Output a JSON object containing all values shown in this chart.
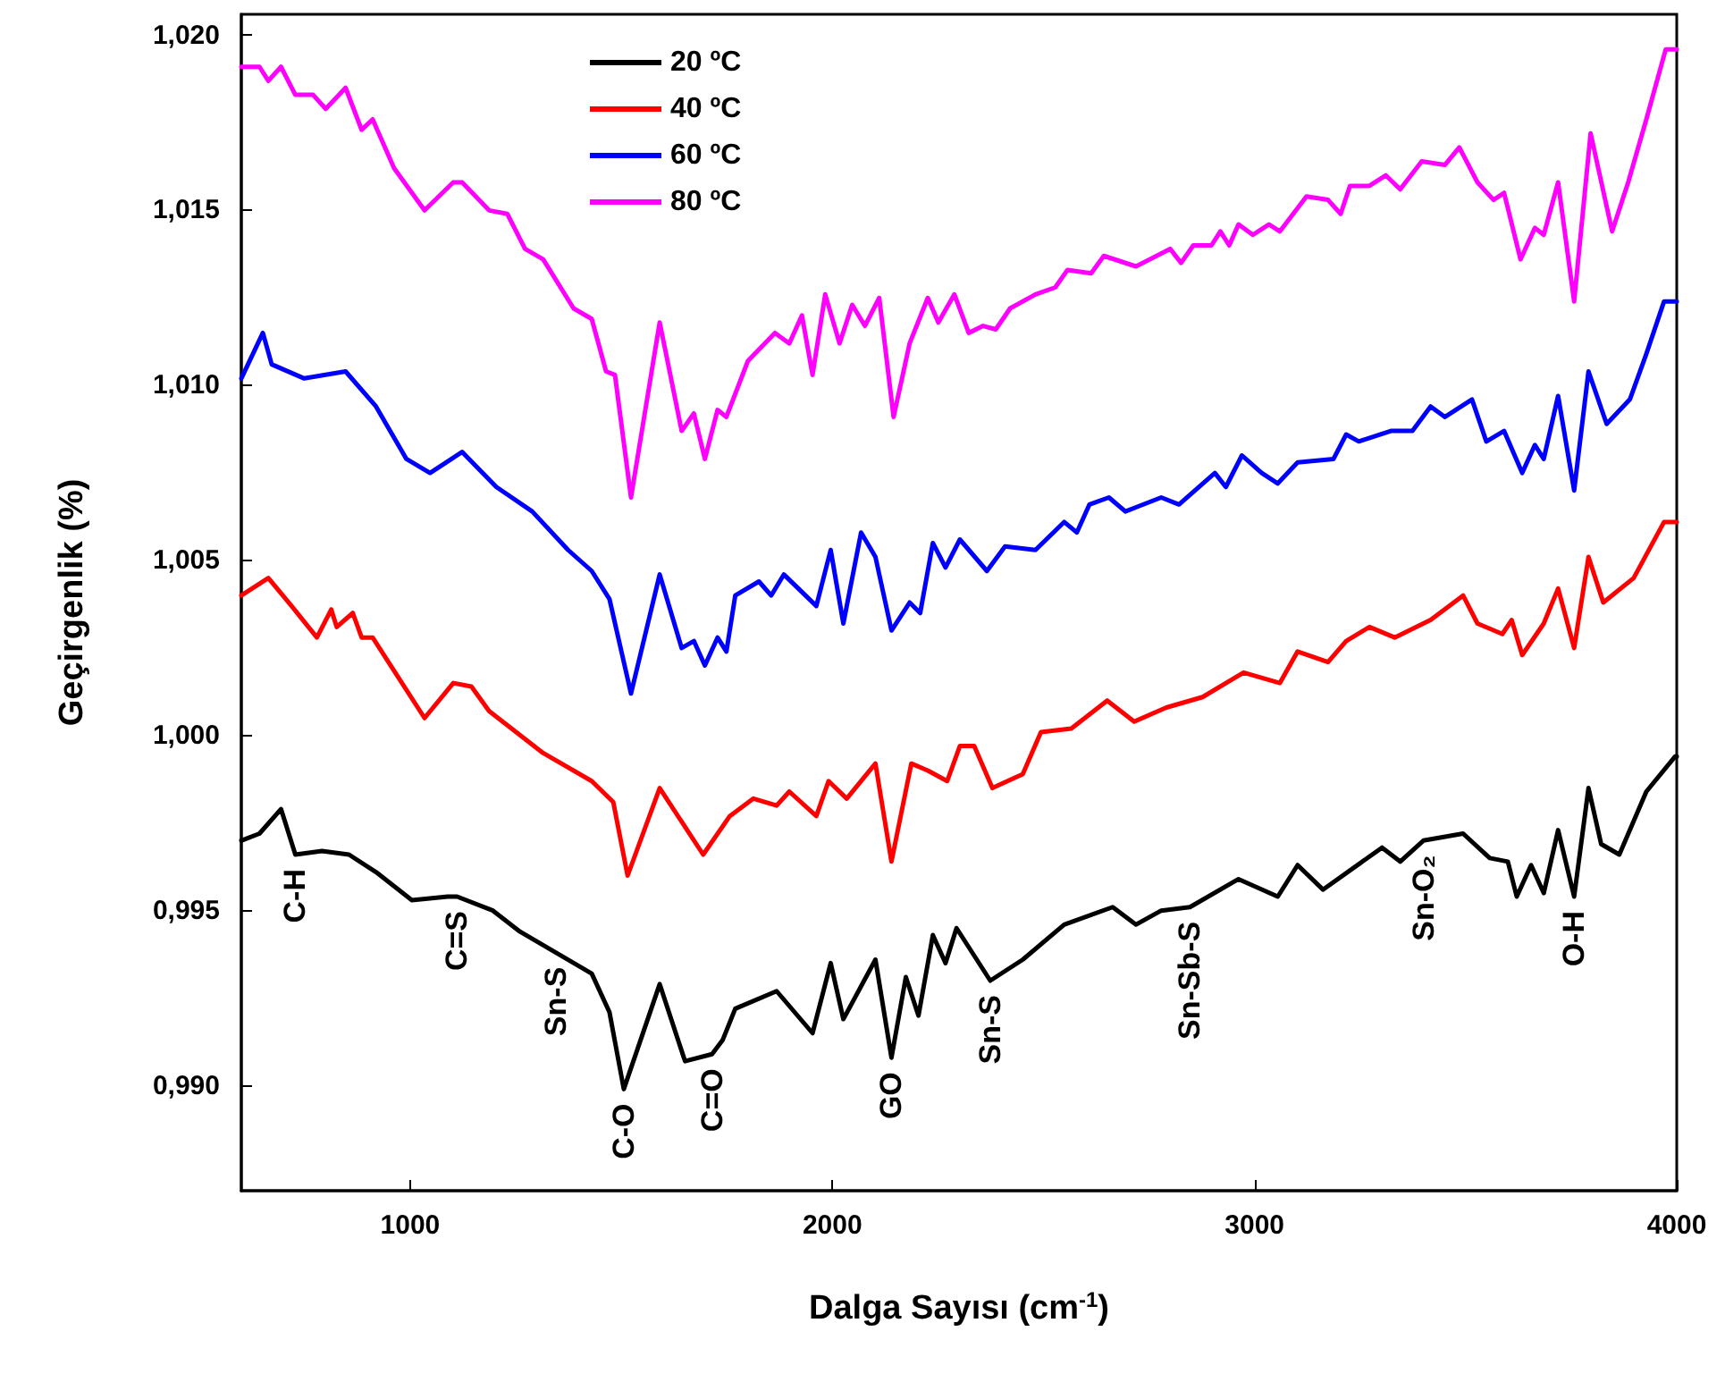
{
  "chart_data": {
    "type": "line",
    "xlabel": "Dalga Sayısı (cm$^{-1}$)",
    "ylabel": "Geçirgenlik (%)",
    "xlim": [
      600,
      4000
    ],
    "xticks": [
      1000,
      2000,
      3000,
      4000
    ],
    "ylim": [
      0.987,
      1.0206
    ],
    "yticks": [
      {
        "value": 0.99,
        "label": "0,990"
      },
      {
        "value": 0.995,
        "label": "0,995"
      },
      {
        "value": 1.0,
        "label": "1,000"
      },
      {
        "value": 1.005,
        "label": "1,005"
      },
      {
        "value": 1.01,
        "label": "1,010"
      },
      {
        "value": 1.015,
        "label": "1,015"
      },
      {
        "value": 1.02,
        "label": "1,020"
      }
    ],
    "grid": false,
    "legend": "top left",
    "marker": "none",
    "line_style": "solid",
    "series": [
      {
        "name": "20 ºC",
        "color": "#000000",
        "x": [
          600,
          643,
          694,
          728,
          791,
          855,
          919,
          1004,
          1089,
          1111,
          1196,
          1260,
          1345,
          1430,
          1472,
          1506,
          1591,
          1651,
          1715,
          1740,
          1770,
          1868,
          1953,
          1996,
          2026,
          2102,
          2140,
          2174,
          2204,
          2238,
          2268,
          2294,
          2374,
          2451,
          2549,
          2664,
          2719,
          2779,
          2847,
          2962,
          3055,
          3102,
          3162,
          3302,
          3345,
          3400,
          3494,
          3557,
          3600,
          3621,
          3655,
          3685,
          3719,
          3757,
          3791,
          3821,
          3864,
          3928,
          3996,
          4000
        ],
        "values": [
          0.997,
          0.9972,
          0.9979,
          0.9966,
          0.9967,
          0.9966,
          0.9961,
          0.9953,
          0.9954,
          0.9954,
          0.995,
          0.9944,
          0.9938,
          0.9932,
          0.9921,
          0.9899,
          0.9929,
          0.9907,
          0.9909,
          0.9913,
          0.9922,
          0.9927,
          0.9915,
          0.9935,
          0.9919,
          0.9936,
          0.9908,
          0.9931,
          0.992,
          0.9943,
          0.9935,
          0.9945,
          0.993,
          0.9936,
          0.9946,
          0.9951,
          0.9946,
          0.995,
          0.9951,
          0.9959,
          0.9954,
          0.9963,
          0.9956,
          0.9968,
          0.9964,
          0.997,
          0.9972,
          0.9965,
          0.9964,
          0.9954,
          0.9963,
          0.9955,
          0.9973,
          0.9954,
          0.9985,
          0.9969,
          0.9966,
          0.9984,
          0.9994,
          0.9994
        ]
      },
      {
        "name": "40 ºC",
        "color": "#ff0000",
        "x": [
          600,
          664,
          719,
          779,
          813,
          826,
          864,
          885,
          911,
          1034,
          1102,
          1145,
          1187,
          1315,
          1430,
          1481,
          1515,
          1591,
          1694,
          1757,
          1813,
          1868,
          1898,
          1962,
          1991,
          2034,
          2102,
          2140,
          2187,
          2226,
          2272,
          2302,
          2336,
          2379,
          2451,
          2494,
          2566,
          2651,
          2715,
          2791,
          2877,
          2974,
          3060,
          3102,
          3174,
          3217,
          3272,
          3332,
          3417,
          3494,
          3528,
          3587,
          3609,
          3634,
          3685,
          3719,
          3757,
          3791,
          3826,
          3898,
          3970,
          4000
        ],
        "values": [
          1.004,
          1.0045,
          1.0037,
          1.0028,
          1.0036,
          1.0031,
          1.0035,
          1.0028,
          1.0028,
          1.0005,
          1.0015,
          1.0014,
          1.0007,
          0.9995,
          0.9987,
          0.9981,
          0.996,
          0.9985,
          0.9966,
          0.9977,
          0.9982,
          0.998,
          0.9984,
          0.9977,
          0.9987,
          0.9982,
          0.9992,
          0.9964,
          0.9992,
          0.999,
          0.9987,
          0.9997,
          0.9997,
          0.9985,
          0.9989,
          1.0001,
          1.0002,
          1.001,
          1.0004,
          1.0008,
          1.0011,
          1.0018,
          1.0015,
          1.0024,
          1.0021,
          1.0027,
          1.0031,
          1.0028,
          1.0033,
          1.004,
          1.0032,
          1.0029,
          1.0033,
          1.0023,
          1.0032,
          1.0042,
          1.0025,
          1.0051,
          1.0038,
          1.0045,
          1.0061,
          1.0061
        ]
      },
      {
        "name": "60 ºC",
        "color": "#0000ff",
        "x": [
          600,
          651,
          672,
          749,
          847,
          919,
          991,
          1047,
          1123,
          1204,
          1289,
          1374,
          1430,
          1472,
          1523,
          1591,
          1643,
          1672,
          1698,
          1728,
          1749,
          1770,
          1826,
          1855,
          1885,
          1962,
          1996,
          2026,
          2068,
          2102,
          2140,
          2183,
          2208,
          2238,
          2268,
          2302,
          2366,
          2409,
          2481,
          2549,
          2579,
          2609,
          2655,
          2694,
          2779,
          2821,
          2906,
          2932,
          2970,
          3017,
          3055,
          3102,
          3187,
          3217,
          3247,
          3323,
          3374,
          3417,
          3451,
          3515,
          3549,
          3591,
          3634,
          3664,
          3685,
          3719,
          3757,
          3791,
          3834,
          3889,
          3928,
          3970,
          4000
        ],
        "values": [
          1.0102,
          1.0115,
          1.0106,
          1.0102,
          1.0104,
          1.0094,
          1.0079,
          1.0075,
          1.0081,
          1.0071,
          1.0064,
          1.0053,
          1.0047,
          1.0039,
          1.0012,
          1.0046,
          1.0025,
          1.0027,
          1.002,
          1.0028,
          1.0024,
          1.004,
          1.0044,
          1.004,
          1.0046,
          1.0037,
          1.0053,
          1.0032,
          1.0058,
          1.0051,
          1.003,
          1.0038,
          1.0035,
          1.0055,
          1.0048,
          1.0056,
          1.0047,
          1.0054,
          1.0053,
          1.0061,
          1.0058,
          1.0066,
          1.0068,
          1.0064,
          1.0068,
          1.0066,
          1.0075,
          1.0071,
          1.008,
          1.0075,
          1.0072,
          1.0078,
          1.0079,
          1.0086,
          1.0084,
          1.0087,
          1.0087,
          1.0094,
          1.0091,
          1.0096,
          1.0084,
          1.0087,
          1.0075,
          1.0083,
          1.0079,
          1.0097,
          1.007,
          1.0104,
          1.0089,
          1.0096,
          1.0109,
          1.0124,
          1.0124
        ]
      },
      {
        "name": "80 ºC",
        "color": "#ff00ff",
        "x": [
          600,
          643,
          664,
          694,
          728,
          770,
          800,
          847,
          885,
          911,
          962,
          1034,
          1102,
          1123,
          1187,
          1230,
          1272,
          1315,
          1387,
          1430,
          1464,
          1485,
          1523,
          1591,
          1643,
          1672,
          1698,
          1728,
          1749,
          1800,
          1864,
          1898,
          1928,
          1953,
          1983,
          2017,
          2047,
          2077,
          2111,
          2145,
          2183,
          2226,
          2251,
          2289,
          2323,
          2357,
          2387,
          2421,
          2481,
          2528,
          2557,
          2613,
          2643,
          2719,
          2800,
          2826,
          2855,
          2898,
          2919,
          2940,
          2962,
          2996,
          3034,
          3060,
          3123,
          3174,
          3204,
          3226,
          3272,
          3311,
          3345,
          3396,
          3451,
          3485,
          3528,
          3566,
          3591,
          3630,
          3664,
          3685,
          3719,
          3757,
          3796,
          3847,
          3885,
          3928,
          3974,
          4000
        ],
        "values": [
          1.0191,
          1.0191,
          1.0187,
          1.0191,
          1.0183,
          1.0183,
          1.0179,
          1.0185,
          1.0173,
          1.0176,
          1.0162,
          1.015,
          1.0158,
          1.0158,
          1.015,
          1.0149,
          1.0139,
          1.0136,
          1.0122,
          1.0119,
          1.0104,
          1.0103,
          1.0068,
          1.0118,
          1.0087,
          1.0092,
          1.0079,
          1.0093,
          1.0091,
          1.0107,
          1.0115,
          1.0112,
          1.012,
          1.0103,
          1.0126,
          1.0112,
          1.0123,
          1.0117,
          1.0125,
          1.0091,
          1.0112,
          1.0125,
          1.0118,
          1.0126,
          1.0115,
          1.0117,
          1.0116,
          1.0122,
          1.0126,
          1.0128,
          1.0133,
          1.0132,
          1.0137,
          1.0134,
          1.0139,
          1.0135,
          1.014,
          1.014,
          1.0144,
          1.014,
          1.0146,
          1.0143,
          1.0146,
          1.0144,
          1.0154,
          1.0153,
          1.0149,
          1.0157,
          1.0157,
          1.016,
          1.0156,
          1.0164,
          1.0163,
          1.0168,
          1.0158,
          1.0153,
          1.0155,
          1.0136,
          1.0145,
          1.0143,
          1.0158,
          1.0124,
          1.0172,
          1.0144,
          1.0158,
          1.0176,
          1.0196,
          1.0196
        ]
      }
    ],
    "annotations": [
      {
        "text": "C-H",
        "x": 728,
        "y": 0.9966
      },
      {
        "text": "C=S",
        "x": 1111,
        "y": 0.9954
      },
      {
        "text": "Sn-S",
        "x": 1345,
        "y": 0.9938
      },
      {
        "text": "C-O",
        "x": 1506,
        "y": 0.9899
      },
      {
        "text": "C=O",
        "x": 1715,
        "y": 0.9909
      },
      {
        "text": "GO",
        "x": 2140,
        "y": 0.9908
      },
      {
        "text": "Sn-S",
        "x": 2374,
        "y": 0.993
      },
      {
        "text": "Sn-Sb-S",
        "x": 2847,
        "y": 0.9951
      },
      {
        "text": "Sn-O₂",
        "x": 3400,
        "y": 0.997
      },
      {
        "text": "O-H",
        "x": 3757,
        "y": 0.9954
      }
    ]
  }
}
